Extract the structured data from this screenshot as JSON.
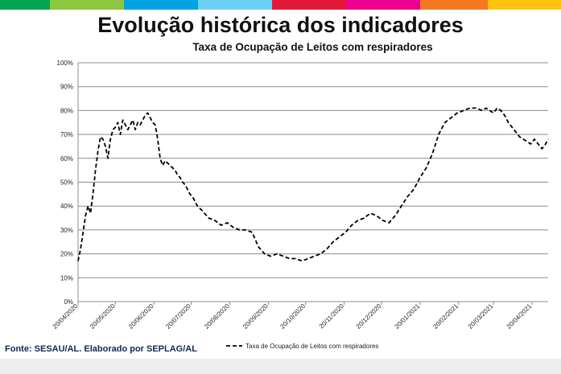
{
  "header_colors": [
    "#00a651",
    "#8dc63f",
    "#00a3e0",
    "#6dcff6",
    "#e31837",
    "#ec008c",
    "#f47920",
    "#ffc20e"
  ],
  "chart_data": {
    "type": "line",
    "title": "Evolução histórica dos indicadores",
    "subtitle": "Taxa de Ocupação de Leitos com respiradores",
    "xlabel": "",
    "ylabel": "",
    "ylim": [
      0,
      100
    ],
    "y_ticks": [
      "0%",
      "10%",
      "20%",
      "30%",
      "40%",
      "50%",
      "60%",
      "70%",
      "80%",
      "90%",
      "100%"
    ],
    "x_ticks": [
      "20/04/2020",
      "20/05/2020",
      "20/06/2020",
      "20/07/2020",
      "20/08/2020",
      "20/09/2020",
      "20/10/2020",
      "20/11/2020",
      "20/12/2020",
      "20/01/2021",
      "20/02/2021",
      "20/03/2021",
      "20/04/2021"
    ],
    "x_tick_days": [
      0,
      30,
      61,
      91,
      122,
      153,
      183,
      214,
      244,
      275,
      306,
      334,
      365
    ],
    "series": [
      {
        "name": "Taxa de Ocupação de Leitos com respiradores",
        "x_days": [
          0,
          2,
          4,
          6,
          8,
          10,
          12,
          14,
          16,
          18,
          20,
          22,
          24,
          26,
          28,
          30,
          32,
          34,
          36,
          38,
          40,
          42,
          44,
          46,
          48,
          50,
          52,
          54,
          56,
          58,
          60,
          62,
          64,
          66,
          68,
          70,
          72,
          74,
          76,
          78,
          80,
          82,
          84,
          86,
          88,
          90,
          92,
          94,
          96,
          98,
          100,
          105,
          110,
          115,
          120,
          125,
          130,
          135,
          140,
          145,
          150,
          155,
          160,
          165,
          170,
          175,
          180,
          185,
          190,
          195,
          200,
          205,
          210,
          215,
          220,
          225,
          230,
          235,
          240,
          245,
          250,
          255,
          260,
          265,
          270,
          275,
          280,
          285,
          290,
          295,
          300,
          305,
          310,
          315,
          320,
          325,
          328,
          331,
          334,
          337,
          340,
          343,
          346,
          349,
          352,
          355,
          358,
          361,
          364,
          367,
          370,
          373,
          376,
          378
        ],
        "values": [
          17,
          22,
          29,
          36,
          40,
          37,
          45,
          55,
          63,
          69,
          68,
          65,
          60,
          68,
          72,
          73,
          75,
          70,
          76,
          74,
          72,
          74,
          76,
          72,
          75,
          74,
          76,
          78,
          79,
          77,
          75,
          74,
          68,
          60,
          57,
          59,
          58,
          57,
          56,
          55,
          53,
          52,
          50,
          49,
          47,
          45,
          44,
          42,
          40,
          39,
          38,
          35,
          34,
          32,
          33,
          31,
          30,
          30,
          29,
          23,
          20,
          19,
          20,
          19,
          18,
          18,
          17,
          18,
          19,
          20,
          22,
          25,
          27,
          29,
          32,
          34,
          35,
          37,
          36,
          34,
          33,
          36,
          40,
          44,
          47,
          52,
          56,
          62,
          70,
          75,
          77,
          79,
          80,
          81,
          81,
          80,
          81,
          80,
          79,
          81,
          80,
          78,
          75,
          73,
          71,
          69,
          68,
          67,
          66,
          68,
          66,
          64,
          66,
          68
        ]
      }
    ],
    "legend": "bottom-center"
  },
  "source_text": "Fonte: SESAU/AL. Elaborado por SEPLAG/AL"
}
